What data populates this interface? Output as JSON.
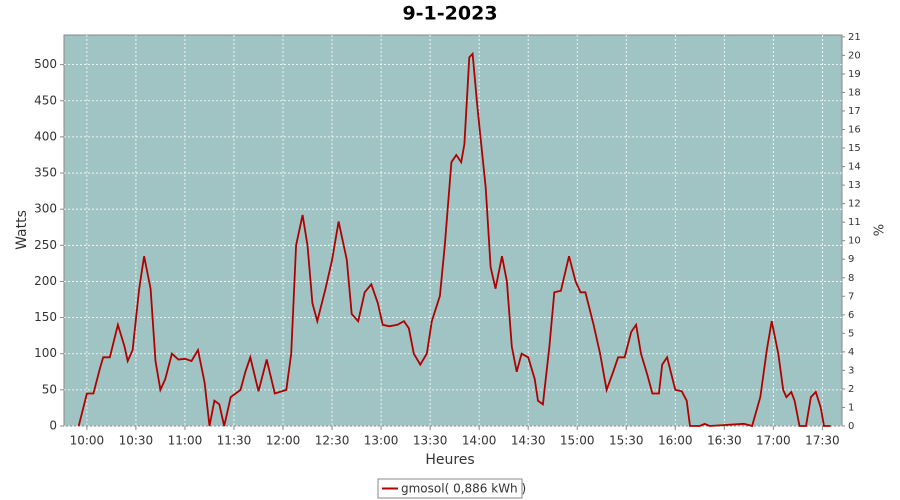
{
  "chart_data": {
    "type": "line",
    "title": "9-1-2023",
    "x_label": "Heures",
    "y_label": "Watts",
    "y2_label": "%",
    "x": [
      "09:55",
      "10:00",
      "10:04",
      "10:08",
      "10:10",
      "10:14",
      "10:19",
      "10:23",
      "10:25",
      "10:28",
      "10:32",
      "10:35",
      "10:39",
      "10:42",
      "10:45",
      "10:48",
      "10:52",
      "10:56",
      "11:00",
      "11:04",
      "11:08",
      "11:12",
      "11:15",
      "11:18",
      "11:21",
      "11:24",
      "11:28",
      "11:34",
      "11:37",
      "11:40",
      "11:45",
      "11:50",
      "11:55",
      "12:02",
      "12:05",
      "12:08",
      "12:12",
      "12:15",
      "12:18",
      "12:21",
      "12:26",
      "12:30",
      "12:34",
      "12:39",
      "12:42",
      "12:46",
      "12:50",
      "12:54",
      "12:58",
      "13:01",
      "13:05",
      "13:10",
      "13:14",
      "13:17",
      "13:20",
      "13:24",
      "13:28",
      "13:31",
      "13:36",
      "13:39",
      "13:43",
      "13:46",
      "13:49",
      "13:51",
      "13:54",
      "13:56",
      "13:59",
      "14:04",
      "14:07",
      "14:10",
      "14:14",
      "14:17",
      "14:20",
      "14:23",
      "14:26",
      "14:30",
      "14:34",
      "14:36",
      "14:39",
      "14:43",
      "14:46",
      "14:50",
      "14:55",
      "14:59",
      "15:02",
      "15:05",
      "15:10",
      "15:14",
      "15:18",
      "15:22",
      "15:25",
      "15:29",
      "15:33",
      "15:36",
      "15:39",
      "15:43",
      "15:46",
      "15:50",
      "15:52",
      "15:55",
      "16:00",
      "16:04",
      "16:07",
      "16:09",
      "16:15",
      "16:18",
      "16:21",
      "16:42",
      "16:47",
      "16:52",
      "16:56",
      "16:59",
      "17:03",
      "17:06",
      "17:08",
      "17:11",
      "17:13",
      "17:16",
      "17:20",
      "17:23",
      "17:26",
      "17:29",
      "17:31",
      "17:35"
    ],
    "series": [
      {
        "name": "gmosol( 0,886 kWh )",
        "color": "#b00000",
        "values": [
          0,
          45,
          45,
          80,
          95,
          95,
          140,
          110,
          90,
          105,
          190,
          235,
          190,
          90,
          50,
          65,
          100,
          92,
          93,
          90,
          105,
          60,
          0,
          35,
          30,
          0,
          40,
          50,
          75,
          95,
          48,
          92,
          45,
          50,
          100,
          250,
          292,
          250,
          170,
          145,
          190,
          230,
          283,
          230,
          155,
          145,
          185,
          196,
          170,
          140,
          138,
          140,
          145,
          135,
          100,
          85,
          100,
          145,
          180,
          250,
          365,
          375,
          365,
          390,
          510,
          515,
          440,
          330,
          220,
          190,
          235,
          200,
          110,
          75,
          100,
          95,
          65,
          35,
          30,
          110,
          185,
          187,
          235,
          200,
          185,
          185,
          140,
          100,
          50,
          75,
          95,
          95,
          130,
          140,
          100,
          70,
          45,
          45,
          85,
          95,
          50,
          48,
          35,
          0,
          0,
          3,
          0,
          3,
          0,
          40,
          105,
          145,
          100,
          50,
          40,
          47,
          35,
          0,
          0,
          40,
          47,
          25,
          0,
          0
        ]
      }
    ],
    "xlim": [
      "09:46",
      "17:42"
    ],
    "xticks": [
      "10:00",
      "10:30",
      "11:00",
      "11:30",
      "12:00",
      "12:30",
      "13:00",
      "13:30",
      "14:00",
      "14:30",
      "15:00",
      "15:30",
      "16:00",
      "16:30",
      "17:00",
      "17:30"
    ],
    "ylim": [
      0,
      541
    ],
    "yticks": [
      0,
      50,
      100,
      150,
      200,
      250,
      300,
      350,
      400,
      450,
      500
    ],
    "y2lim": [
      0,
      21.1
    ],
    "y2ticks": [
      0,
      1,
      2,
      3,
      4,
      5,
      6,
      7,
      8,
      9,
      10,
      11,
      12,
      13,
      14,
      15,
      16,
      17,
      18,
      19,
      20,
      21
    ],
    "grid": true,
    "legend": "bottom"
  }
}
